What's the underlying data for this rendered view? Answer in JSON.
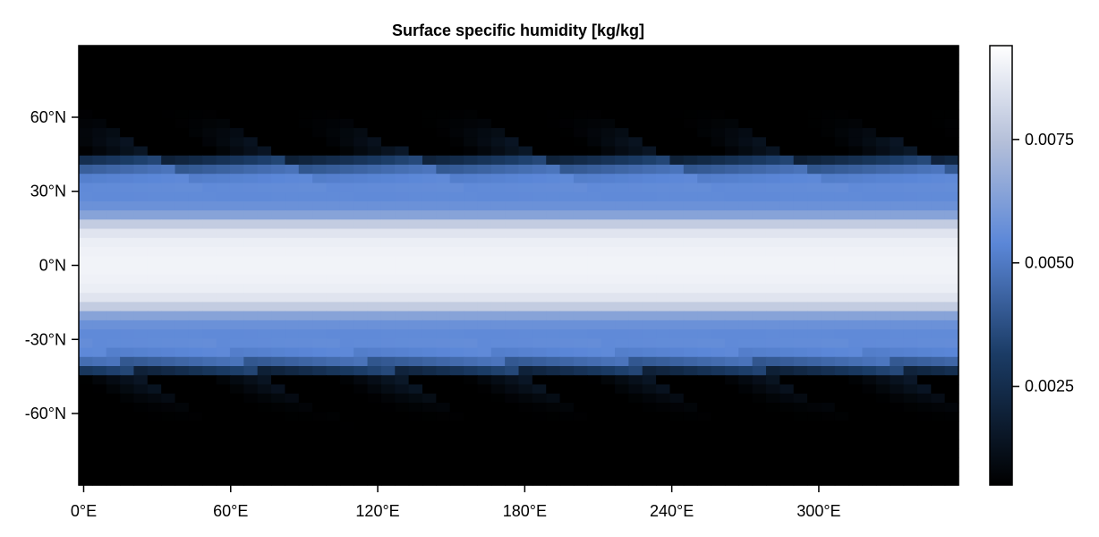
{
  "chart_data": {
    "type": "heatmap",
    "title": "Surface specific humidity [kg/kg]",
    "xlabel": "",
    "ylabel": "",
    "x_ticks": [
      {
        "value": 0,
        "label": "0°E"
      },
      {
        "value": 60,
        "label": "60°E"
      },
      {
        "value": 120,
        "label": "120°E"
      },
      {
        "value": 180,
        "label": "180°E"
      },
      {
        "value": 240,
        "label": "240°E"
      },
      {
        "value": 300,
        "label": "300°E"
      }
    ],
    "y_ticks": [
      {
        "value": 60,
        "label": "60°N"
      },
      {
        "value": 30,
        "label": "30°N"
      },
      {
        "value": 0,
        "label": "0°N"
      },
      {
        "value": -30,
        "label": "-30°N"
      },
      {
        "value": -60,
        "label": "-60°N"
      }
    ],
    "xlim": [
      -2,
      357
    ],
    "ylim": [
      -89,
      89
    ],
    "grid": {
      "nlon": 64,
      "nlat": 48
    },
    "colorbar": {
      "range": [
        0.0005,
        0.0094
      ],
      "ticks": [
        {
          "value": 0.0025,
          "label": "0.0025"
        },
        {
          "value": 0.005,
          "label": "0.0050"
        },
        {
          "value": 0.0075,
          "label": "0.0075"
        }
      ]
    },
    "colormap_stops": [
      {
        "v": 0.0,
        "color": "#000000"
      },
      {
        "v": 0.3,
        "color": "#1b3c66"
      },
      {
        "v": 0.55,
        "color": "#5b87d8"
      },
      {
        "v": 0.78,
        "color": "#b4bfd9"
      },
      {
        "v": 1.0,
        "color": "#ffffff"
      }
    ]
  }
}
